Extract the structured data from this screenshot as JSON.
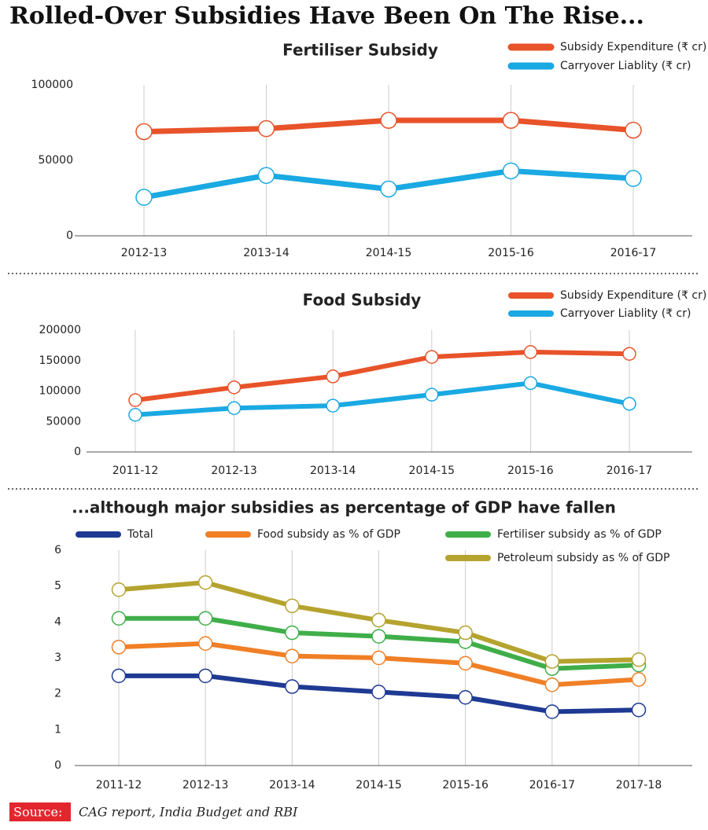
{
  "title": "Rolled-Over Subsidies Have Been On The Rise...",
  "source_label": "Source:",
  "source_text": "CAG report, India Budget and RBI",
  "chart_data": [
    {
      "type": "line",
      "title": "Fertiliser Subsidy",
      "categories": [
        "2012-13",
        "2013-14",
        "2014-15",
        "2015-16",
        "2016-17"
      ],
      "series": [
        {
          "name": "Subsidy Expenditure (₹ cr)",
          "color": "#e8532a",
          "values": [
            69000,
            71000,
            76500,
            76500,
            70000
          ]
        },
        {
          "name": "Carryover Liablity (₹ cr)",
          "color": "#1aa9e2",
          "values": [
            25500,
            40000,
            31000,
            43000,
            38000
          ]
        }
      ],
      "ylim": [
        0,
        100000
      ],
      "yticks": [
        0,
        50000,
        100000
      ],
      "grid": true
    },
    {
      "type": "line",
      "title": "Food Subsidy",
      "categories": [
        "2011-12",
        "2012-13",
        "2013-14",
        "2014-15",
        "2015-16",
        "2016-17"
      ],
      "series": [
        {
          "name": "Subsidy Expenditure (₹ cr)",
          "color": "#e8532a",
          "values": [
            85000,
            106000,
            124000,
            156000,
            164000,
            161000
          ]
        },
        {
          "name": "Carryover Liablity (₹ cr)",
          "color": "#1aa9e2",
          "values": [
            61000,
            72000,
            76000,
            94000,
            113000,
            79000
          ]
        }
      ],
      "ylim": [
        0,
        200000
      ],
      "yticks": [
        0,
        50000,
        100000,
        150000,
        200000
      ],
      "grid": true
    },
    {
      "type": "line",
      "title": "...although major subsidies as percentage of GDP have fallen",
      "categories": [
        "2011-12",
        "2012-13",
        "2013-14",
        "2014-15",
        "2015-16",
        "2016-17",
        "2017-18"
      ],
      "series": [
        {
          "name": "Total",
          "color": "#1f3a93",
          "values": [
            2.5,
            2.5,
            2.2,
            2.05,
            1.9,
            1.5,
            1.55
          ]
        },
        {
          "name": "Food subsidy as % of GDP",
          "color": "#f07f26",
          "values": [
            3.3,
            3.4,
            3.05,
            3.0,
            2.85,
            2.25,
            2.4
          ]
        },
        {
          "name": "Fertiliser subsidy as % of GDP",
          "color": "#3fae49",
          "values": [
            4.1,
            4.1,
            3.7,
            3.6,
            3.45,
            2.7,
            2.8
          ]
        },
        {
          "name": "Petroleum subsidy as % of GDP",
          "color": "#b5a32f",
          "values": [
            4.9,
            5.1,
            4.45,
            4.05,
            3.7,
            2.9,
            2.95
          ]
        }
      ],
      "ylim": [
        0,
        6
      ],
      "yticks": [
        0,
        1,
        2,
        3,
        4,
        5,
        6
      ],
      "grid": true
    }
  ]
}
